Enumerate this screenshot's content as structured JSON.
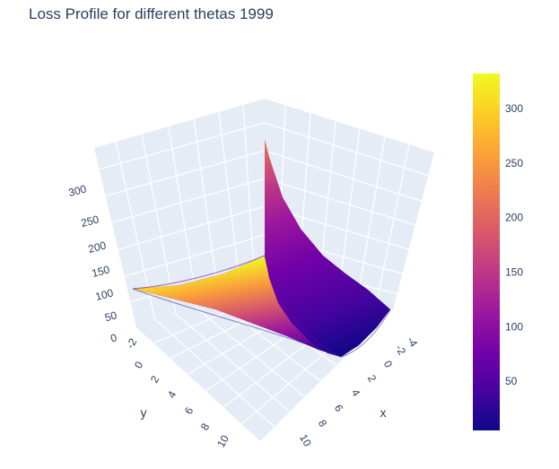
{
  "header": {
    "title": "Loss Profile for different thetas 1999"
  },
  "chart_data": {
    "type": "surface",
    "title": "Loss Profile for different thetas 1999",
    "axes": {
      "x": {
        "label": "x",
        "ticks": [
          "-4",
          "-2",
          "0",
          "2",
          "4",
          "6",
          "8",
          "10"
        ]
      },
      "y": {
        "label": "y",
        "ticks": [
          "-2",
          "0",
          "2",
          "4",
          "6",
          "8",
          "10"
        ]
      },
      "z": {
        "label": "",
        "ticks": [
          "0",
          "50",
          "100",
          "150",
          "200",
          "250",
          "300"
        ]
      }
    },
    "zlim": [
      0,
      330
    ],
    "surface_corner_values": [
      {
        "x": -4,
        "y": -2,
        "z": 105
      },
      {
        "x": -4,
        "y": 10,
        "z": 330
      },
      {
        "x": 10,
        "y": -2,
        "z": 215
      },
      {
        "x": 10,
        "y": 10,
        "z": 0
      }
    ],
    "colorbar": {
      "ticks": [
        "50",
        "100",
        "150",
        "200",
        "250",
        "300"
      ],
      "range": [
        5,
        332
      ],
      "colorscale": [
        "#0d0887",
        "#46039f",
        "#7201a8",
        "#9c179e",
        "#bd3786",
        "#d8576b",
        "#ed7953",
        "#fb9f3a",
        "#fdca26",
        "#f0f921"
      ]
    }
  }
}
